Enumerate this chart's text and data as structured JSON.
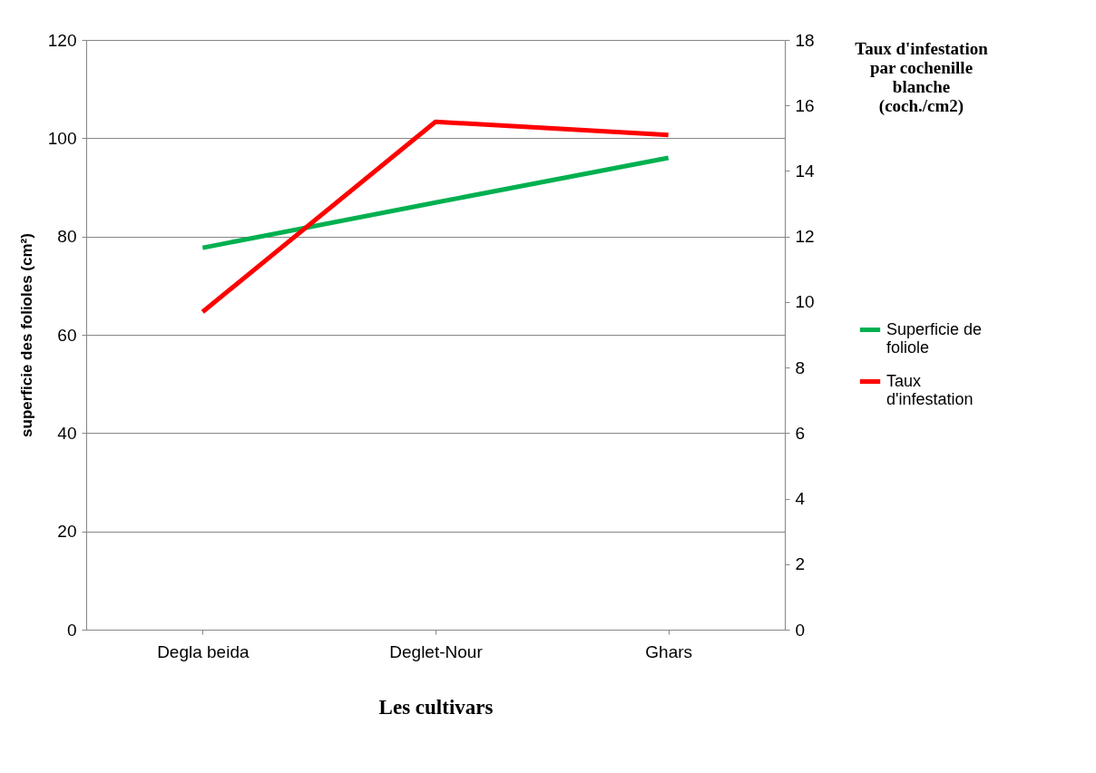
{
  "chart_data": {
    "type": "line",
    "categories": [
      "Degla beida",
      "Deglet-Nour",
      "Ghars"
    ],
    "xlabel": "Les cultivars",
    "ylabel": "superficie des folioles  (cm²)",
    "y2label": "Taux d'infestation\npar  cochenille\nblanche\n(coch./cm2)",
    "ylim": [
      0,
      120
    ],
    "yticks": [
      0,
      20,
      40,
      60,
      80,
      100,
      120
    ],
    "y2lim": [
      0,
      18
    ],
    "y2ticks": [
      0,
      2,
      4,
      6,
      8,
      10,
      12,
      14,
      16,
      18
    ],
    "grid": "y",
    "legend": "right",
    "marker": "none",
    "line_style": "solid",
    "series": [
      {
        "name": "Superficie de\nfoliole",
        "color": "#00b050",
        "values": [
          77.7,
          86.9,
          96.0
        ]
      },
      {
        "name": "Taux\nd'infestation",
        "color": "#ff0000",
        "axis": "y2",
        "values": [
          9.7,
          15.5,
          15.1
        ]
      }
    ]
  }
}
